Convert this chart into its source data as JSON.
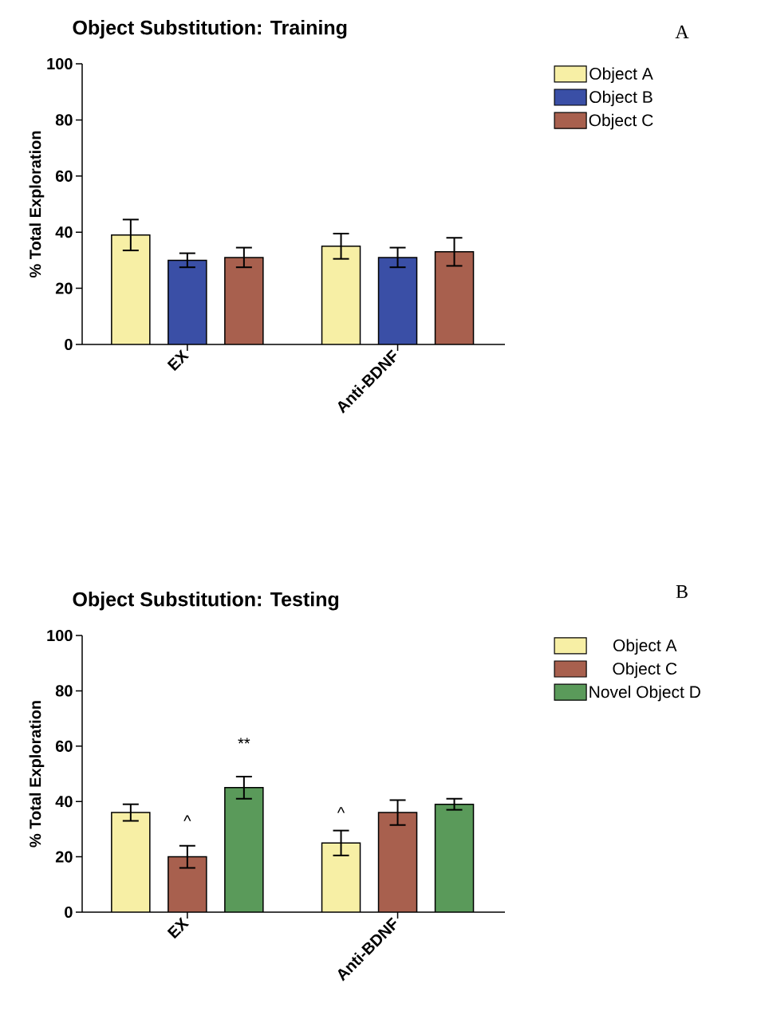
{
  "chart_data": [
    {
      "type": "bar",
      "title": "Object Substitution: Training",
      "ylabel": "% Total Exploration",
      "categories": [
        "EX",
        "Anti-BDNF"
      ],
      "series": [
        {
          "name": "Object A",
          "color": "#f7efa5",
          "values": [
            39,
            35
          ],
          "errors": [
            5.5,
            4.5
          ]
        },
        {
          "name": "Object B",
          "color": "#3a4fa6",
          "values": [
            30,
            31
          ],
          "errors": [
            2.5,
            3.5
          ]
        },
        {
          "name": "Object C",
          "color": "#a8604e",
          "values": [
            31,
            33
          ],
          "errors": [
            3.5,
            5
          ]
        }
      ],
      "ylim": [
        0,
        100
      ],
      "yticks": [
        0,
        20,
        40,
        60,
        80,
        100
      ],
      "legend": "right",
      "annotations": [
        "A"
      ]
    },
    {
      "type": "bar",
      "title": "Object Substitution: Testing",
      "ylabel": "% Total Exploration",
      "categories": [
        "EX",
        "Anti-BDNF"
      ],
      "series": [
        {
          "name": "Object A",
          "color": "#f7efa5",
          "values": [
            36,
            25
          ],
          "errors": [
            3,
            4.5
          ]
        },
        {
          "name": "Object C",
          "color": "#a8604e",
          "values": [
            20,
            36
          ],
          "errors": [
            4,
            4.5
          ]
        },
        {
          "name": "Novel Object D",
          "color": "#5a9a5a",
          "values": [
            45,
            39
          ],
          "errors": [
            4,
            2
          ]
        }
      ],
      "ylim": [
        0,
        100
      ],
      "yticks": [
        0,
        20,
        40,
        60,
        80,
        100
      ],
      "legend": "right",
      "annotations": [
        "B",
        "^",
        "**",
        "^"
      ]
    }
  ]
}
